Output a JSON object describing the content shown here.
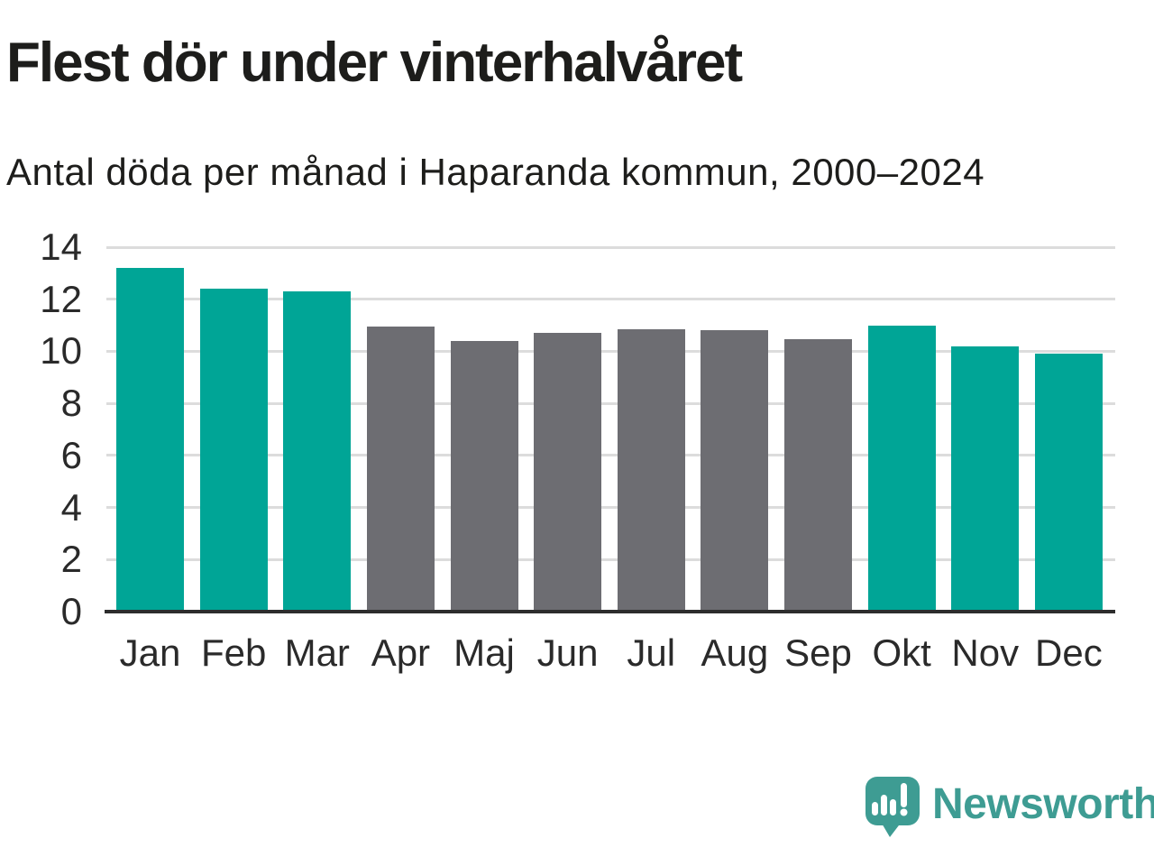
{
  "header": {
    "title": "Flest dör under vinterhalvåret",
    "subtitle": "Antal döda per månad i Haparanda kommun, 2000–2024"
  },
  "chart_data": {
    "type": "bar",
    "title": "Flest dör under vinterhalvåret",
    "subtitle": "Antal döda per månad i Haparanda kommun, 2000–2024",
    "categories": [
      "Jan",
      "Feb",
      "Mar",
      "Apr",
      "Maj",
      "Jun",
      "Jul",
      "Aug",
      "Sep",
      "Okt",
      "Nov",
      "Dec"
    ],
    "values": [
      13.2,
      12.4,
      12.3,
      10.95,
      10.4,
      10.7,
      10.85,
      10.8,
      10.45,
      11.0,
      10.2,
      9.9
    ],
    "highlighted": [
      true,
      true,
      true,
      false,
      false,
      false,
      false,
      false,
      false,
      true,
      true,
      true
    ],
    "colors": {
      "highlight": "#00a596",
      "default": "#6d6d72"
    },
    "xlabel": "",
    "ylabel": "",
    "ylim": [
      0,
      14
    ],
    "yticks": [
      0,
      2,
      4,
      6,
      8,
      10,
      12,
      14
    ],
    "grid": "horizontal",
    "legend": "none"
  },
  "footer": {
    "brand": "Newsworthy",
    "brand_color": "#3e9c93",
    "logo_icon": "newsworthy-speech-bubble-barchart-icon"
  }
}
